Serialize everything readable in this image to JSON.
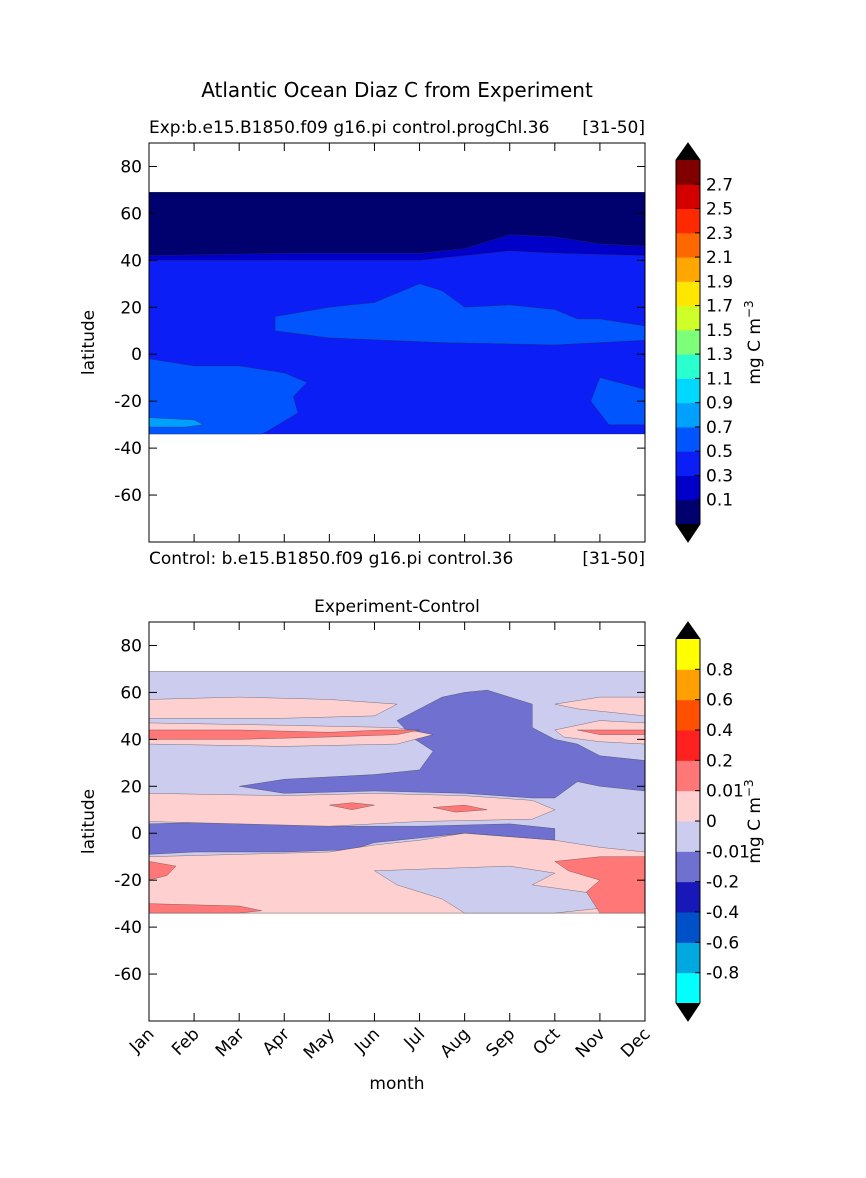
{
  "title": "Atlantic Ocean Diaz C from Experiment",
  "chart_data": [
    {
      "type": "contour",
      "title_left": "Exp:b.e15.B1850.f09 g16.pi control.progChl.36",
      "title_right": "[31-50]",
      "ylabel": "latitude",
      "xlim": [
        0,
        11
      ],
      "xticks": [
        0,
        1,
        2,
        3,
        4,
        5,
        6,
        7,
        8,
        9,
        10,
        11
      ],
      "ylim": [
        -80,
        90
      ],
      "yticks": [
        -60,
        -40,
        -20,
        0,
        20,
        40,
        60,
        80
      ],
      "colorbar": {
        "label": "mg C m",
        "label_sup": "−3",
        "levels": [
          0.1,
          0.3,
          0.5,
          0.7,
          0.9,
          1.1,
          1.3,
          1.5,
          1.7,
          1.9,
          2.1,
          2.3,
          2.5,
          2.7
        ],
        "colors": [
          "#00006e",
          "#0000c8",
          "#0a1ef5",
          "#0055ff",
          "#00a0ff",
          "#00d8ff",
          "#2affcf",
          "#7dff7a",
          "#ceff29",
          "#ffe600",
          "#ffa700",
          "#ff6800",
          "#ff2900",
          "#d40000",
          "#800000"
        ],
        "extend_color": "#000000"
      },
      "regions": [
        {
          "color": "#0a1ef5",
          "x": [
            0,
            11,
            11,
            0
          ],
          "y": [
            69,
            69,
            -34,
            -34
          ]
        },
        {
          "color": "#0000c8",
          "x": [
            0,
            3,
            6,
            7,
            8,
            9,
            10,
            11,
            11,
            9,
            8,
            6,
            3,
            0
          ],
          "y": [
            44,
            44,
            44,
            47,
            55,
            54,
            50,
            48,
            42,
            43,
            44,
            40,
            40,
            40
          ]
        },
        {
          "color": "#00006e",
          "x": [
            0,
            11,
            11,
            10,
            9,
            8,
            7,
            6,
            3,
            0
          ],
          "y": [
            69,
            69,
            46,
            47,
            50,
            51,
            45,
            43,
            43,
            42
          ]
        },
        {
          "color": "#0055ff",
          "x": [
            2.8,
            4,
            5,
            5.5,
            6,
            6.5,
            7,
            8,
            9,
            9.5,
            10,
            11,
            11,
            9,
            6.5,
            4,
            2.8
          ],
          "y": [
            16,
            20,
            22,
            26,
            30,
            27,
            20,
            21,
            19,
            15,
            15,
            12,
            6,
            4,
            5,
            7,
            10
          ]
        },
        {
          "color": "#0055ff",
          "x": [
            0,
            1,
            2,
            3,
            3.5,
            3.2,
            3.3,
            2.6,
            2.5,
            0
          ],
          "y": [
            -2,
            -5,
            -5,
            -8,
            -12,
            -18,
            -25,
            -33,
            -34,
            -34
          ]
        },
        {
          "color": "#0055ff",
          "x": [
            10,
            11,
            11,
            10.2,
            9.8
          ],
          "y": [
            -10,
            -15,
            -30,
            -30,
            -20
          ]
        },
        {
          "color": "#00a0ff",
          "x": [
            0,
            1,
            1.2,
            0.8,
            0
          ],
          "y": [
            -27,
            -28,
            -30,
            -31,
            -31
          ]
        }
      ]
    },
    {
      "type": "contour",
      "title": "Experiment-Control",
      "title_left": "Control: b.e15.B1850.f09 g16.pi control.36",
      "title_right": "[31-50]",
      "ylabel": "latitude",
      "xlabel": "month",
      "xlim": [
        0,
        11
      ],
      "xticks": [
        {
          "value": 0,
          "label": "Jan"
        },
        {
          "value": 1,
          "label": "Feb"
        },
        {
          "value": 2,
          "label": "Mar"
        },
        {
          "value": 3,
          "label": "Apr"
        },
        {
          "value": 4,
          "label": "May"
        },
        {
          "value": 5,
          "label": "Jun"
        },
        {
          "value": 6,
          "label": "Jul"
        },
        {
          "value": 7,
          "label": "Aug"
        },
        {
          "value": 8,
          "label": "Sep"
        },
        {
          "value": 9,
          "label": "Oct"
        },
        {
          "value": 10,
          "label": "Nov"
        },
        {
          "value": 11,
          "label": "Dec"
        }
      ],
      "ylim": [
        -80,
        90
      ],
      "yticks": [
        -60,
        -40,
        -20,
        0,
        20,
        40,
        60,
        80
      ],
      "colorbar": {
        "label": "mg C m",
        "label_sup": "−3",
        "levels": [
          -0.8,
          -0.6,
          -0.4,
          -0.2,
          -0.01,
          0,
          0.01,
          0.2,
          0.4,
          0.6,
          0.8
        ],
        "colors": [
          "#00ffff",
          "#00a8e0",
          "#0050c8",
          "#1818b8",
          "#7070d0",
          "#ccccee",
          "#ffd0d0",
          "#ff7777",
          "#ff2020",
          "#ff5000",
          "#ffa000",
          "#ffff00"
        ],
        "extend_color": "#000000"
      },
      "regions": [
        {
          "color": "#ccccee",
          "x": [
            0,
            11,
            11,
            0
          ],
          "y": [
            69,
            69,
            -34,
            -34
          ]
        },
        {
          "color": "#7070d0",
          "x": [
            2,
            3,
            5,
            6,
            6.3,
            5.9,
            5.5,
            6,
            6.5,
            7,
            7.5,
            8,
            8.5,
            8.5,
            9,
            9.5,
            10,
            11,
            11,
            10,
            9.5,
            9,
            8.5,
            7,
            5,
            3
          ],
          "y": [
            20,
            23,
            25,
            27,
            35,
            40,
            48,
            53,
            58,
            60,
            61,
            58,
            55,
            45,
            40,
            38,
            33,
            31,
            18,
            20,
            22,
            15,
            15,
            17,
            18,
            17
          ]
        },
        {
          "color": "#7070d0",
          "x": [
            0,
            2,
            4,
            6,
            8,
            9,
            9,
            7,
            5,
            4.5,
            3,
            1,
            0
          ],
          "y": [
            4,
            5,
            3,
            3,
            4,
            2,
            -3,
            0,
            -4,
            -7,
            -8,
            -8,
            -9
          ]
        },
        {
          "color": "#ffd0d0",
          "x": [
            0,
            2,
            4,
            5.5,
            5,
            3,
            0
          ],
          "y": [
            57,
            58,
            57,
            55,
            50,
            49,
            49
          ]
        },
        {
          "color": "#ffd0d0",
          "x": [
            0,
            3,
            5.5,
            6.3,
            5.5,
            3,
            0
          ],
          "y": [
            47,
            46,
            45,
            42,
            38,
            37,
            38
          ]
        },
        {
          "color": "#ffd0d0",
          "x": [
            0,
            3,
            5,
            7,
            8.5,
            9,
            8.5,
            6,
            4,
            2,
            0
          ],
          "y": [
            17,
            16,
            17,
            16,
            14,
            10,
            6,
            5,
            3,
            4,
            5
          ]
        },
        {
          "color": "#ffd0d0",
          "x": [
            0,
            2,
            4,
            5,
            6,
            7,
            9,
            10,
            11,
            11,
            0
          ],
          "y": [
            -10,
            -9,
            -8,
            -5,
            -3,
            0,
            -3,
            -6,
            -8,
            -34,
            -34
          ]
        },
        {
          "color": "#ccccee",
          "x": [
            5,
            6.5,
            8,
            9,
            8.5,
            10,
            10,
            9,
            7,
            6.5,
            5.5
          ],
          "y": [
            -16,
            -15,
            -14,
            -17,
            -22,
            -26,
            -32,
            -34,
            -34,
            -28,
            -22
          ]
        },
        {
          "color": "#ffd0d0",
          "x": [
            9,
            10,
            11,
            11,
            10,
            9.5
          ],
          "y": [
            55,
            58,
            58,
            50,
            52,
            53
          ]
        },
        {
          "color": "#ffd0d0",
          "x": [
            9,
            10,
            11,
            11,
            10,
            9.2
          ],
          "y": [
            44,
            48,
            47,
            38,
            39,
            41
          ]
        },
        {
          "color": "#ff7777",
          "x": [
            0,
            2,
            4,
            5.2,
            6,
            5.5,
            4,
            2,
            0
          ],
          "y": [
            44,
            44,
            43,
            44,
            44,
            42,
            41,
            40,
            40
          ]
        },
        {
          "color": "#ff7777",
          "x": [
            9.5,
            10.5,
            11,
            11,
            10
          ],
          "y": [
            44,
            44,
            44,
            42,
            42
          ]
        },
        {
          "color": "#ff7777",
          "x": [
            0,
            0.6,
            0.4,
            0
          ],
          "y": [
            -12,
            -14,
            -18,
            -20
          ]
        },
        {
          "color": "#ff7777",
          "x": [
            0,
            2,
            2.5,
            2,
            0
          ],
          "y": [
            -30,
            -31,
            -33,
            -34,
            -34
          ]
        },
        {
          "color": "#ff7777",
          "x": [
            9,
            10,
            11,
            11,
            10,
            9.7,
            10,
            9.3
          ],
          "y": [
            -12,
            -10,
            -10,
            -34,
            -34,
            -25,
            -20,
            -16
          ]
        },
        {
          "color": "#ff7777",
          "x": [
            4,
            4.5,
            5,
            4.5
          ],
          "y": [
            12,
            13,
            12,
            10
          ]
        },
        {
          "color": "#ff7777",
          "x": [
            6.3,
            7,
            7.5,
            6.8
          ],
          "y": [
            11,
            12,
            10,
            9
          ]
        }
      ]
    }
  ]
}
